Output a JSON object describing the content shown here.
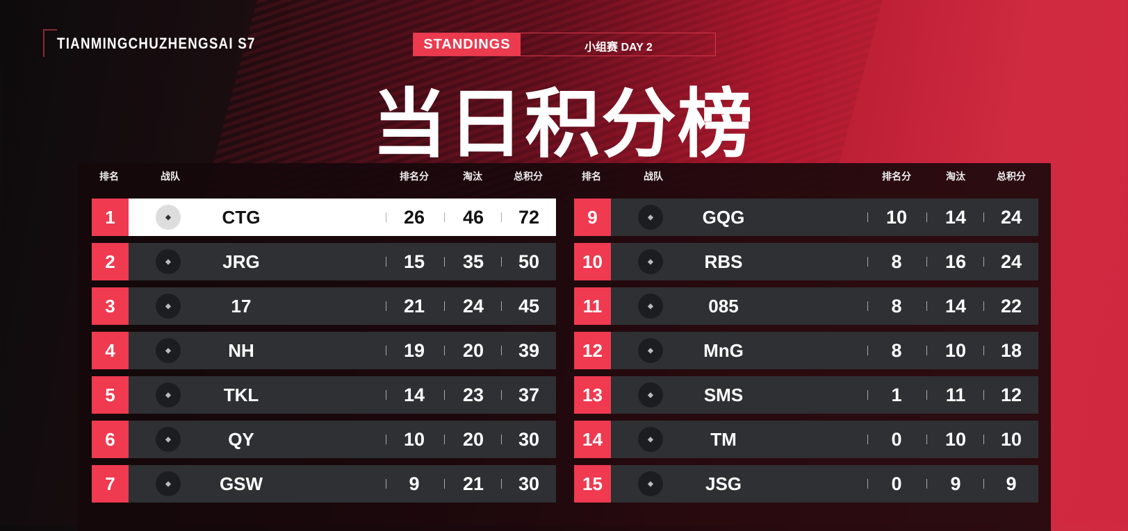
{
  "brand": "TIANMINGCHUZHENGSAI S7",
  "badge": "STANDINGS",
  "stage": "小组赛 DAY 2",
  "title": "当日积分榜",
  "headers": {
    "rank": "排名",
    "team": "战队",
    "placement": "排名分",
    "kills": "淘汰",
    "total": "总积分"
  },
  "colors": {
    "accent": "#ef3a50",
    "row": "#2e3033",
    "highlight": "#ffffff"
  },
  "left": [
    {
      "rank": "1",
      "team": "CTG",
      "placement": "26",
      "kills": "46",
      "total": "72",
      "highlight": true
    },
    {
      "rank": "2",
      "team": "JRG",
      "placement": "15",
      "kills": "35",
      "total": "50"
    },
    {
      "rank": "3",
      "team": "17",
      "placement": "21",
      "kills": "24",
      "total": "45"
    },
    {
      "rank": "4",
      "team": "NH",
      "placement": "19",
      "kills": "20",
      "total": "39"
    },
    {
      "rank": "5",
      "team": "TKL",
      "placement": "14",
      "kills": "23",
      "total": "37"
    },
    {
      "rank": "6",
      "team": "QY",
      "placement": "10",
      "kills": "20",
      "total": "30"
    },
    {
      "rank": "7",
      "team": "GSW",
      "placement": "9",
      "kills": "21",
      "total": "30"
    }
  ],
  "right": [
    {
      "rank": "9",
      "team": "GQG",
      "placement": "10",
      "kills": "14",
      "total": "24"
    },
    {
      "rank": "10",
      "team": "RBS",
      "placement": "8",
      "kills": "16",
      "total": "24"
    },
    {
      "rank": "11",
      "team": "085",
      "placement": "8",
      "kills": "14",
      "total": "22"
    },
    {
      "rank": "12",
      "team": "MnG",
      "placement": "8",
      "kills": "10",
      "total": "18"
    },
    {
      "rank": "13",
      "team": "SMS",
      "placement": "1",
      "kills": "11",
      "total": "12"
    },
    {
      "rank": "14",
      "team": "TM",
      "placement": "0",
      "kills": "10",
      "total": "10"
    },
    {
      "rank": "15",
      "team": "JSG",
      "placement": "0",
      "kills": "9",
      "total": "9"
    }
  ]
}
